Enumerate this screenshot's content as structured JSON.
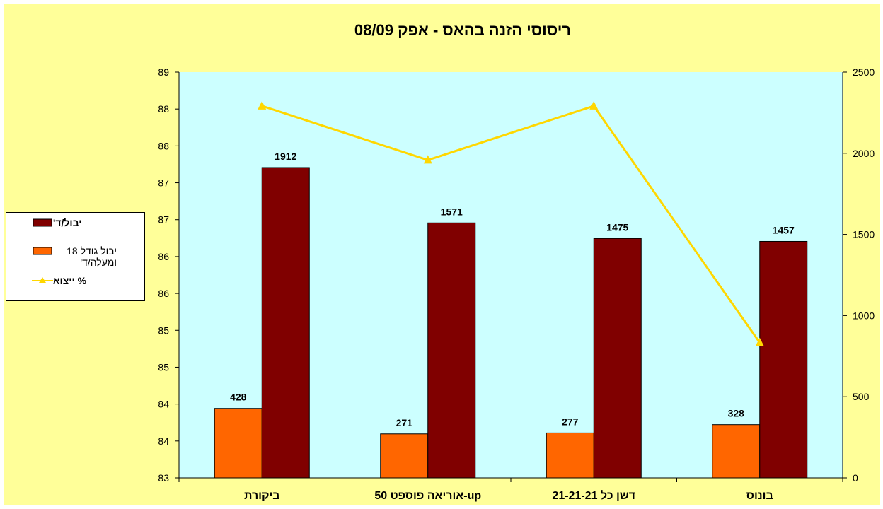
{
  "chart_data": {
    "type": "bar",
    "title": "ריסוסי הזנה בהאס - אפק 08/09",
    "categories": [
      "ביקורת",
      "אוריאה פוספט 50-up",
      "דשן כל 21-21-21",
      "בונוס"
    ],
    "series": [
      {
        "name": "יבול גודל 18 ומעלה/ד'",
        "type": "bar",
        "axis": "right",
        "values": [
          428,
          271,
          277,
          328
        ],
        "color": "#ff6600"
      },
      {
        "name": "יבול/ד'",
        "type": "bar",
        "axis": "right",
        "values": [
          1912,
          1571,
          1475,
          1457
        ],
        "color": "#800000"
      },
      {
        "name": "% ייצוא",
        "type": "line",
        "axis": "left",
        "values": [
          88.5,
          87.7,
          88.5,
          85.0
        ],
        "color": "#ffd700",
        "marker": "triangle"
      }
    ],
    "left_axis": {
      "ylim": [
        83,
        89
      ],
      "tick_labels": [
        "83",
        "84",
        "84",
        "85",
        "85",
        "86",
        "86",
        "87",
        "87",
        "88",
        "88",
        "89"
      ]
    },
    "right_axis": {
      "ylim": [
        0,
        2500
      ],
      "ticks": [
        0,
        500,
        1000,
        1500,
        2000,
        2500
      ]
    },
    "plot_background": "#ccffff",
    "chart_background": "#ffff99",
    "legend_position": "left",
    "legend_entries": [
      {
        "label": "יבול/ד'",
        "symbol": "bar",
        "color": "#800000"
      },
      {
        "label": "יבול גודל 18 ומעלה/ד'",
        "symbol": "bar",
        "color": "#ff6600"
      },
      {
        "label": "% ייצוא",
        "symbol": "line",
        "color": "#ffd700"
      }
    ],
    "grid": false
  }
}
